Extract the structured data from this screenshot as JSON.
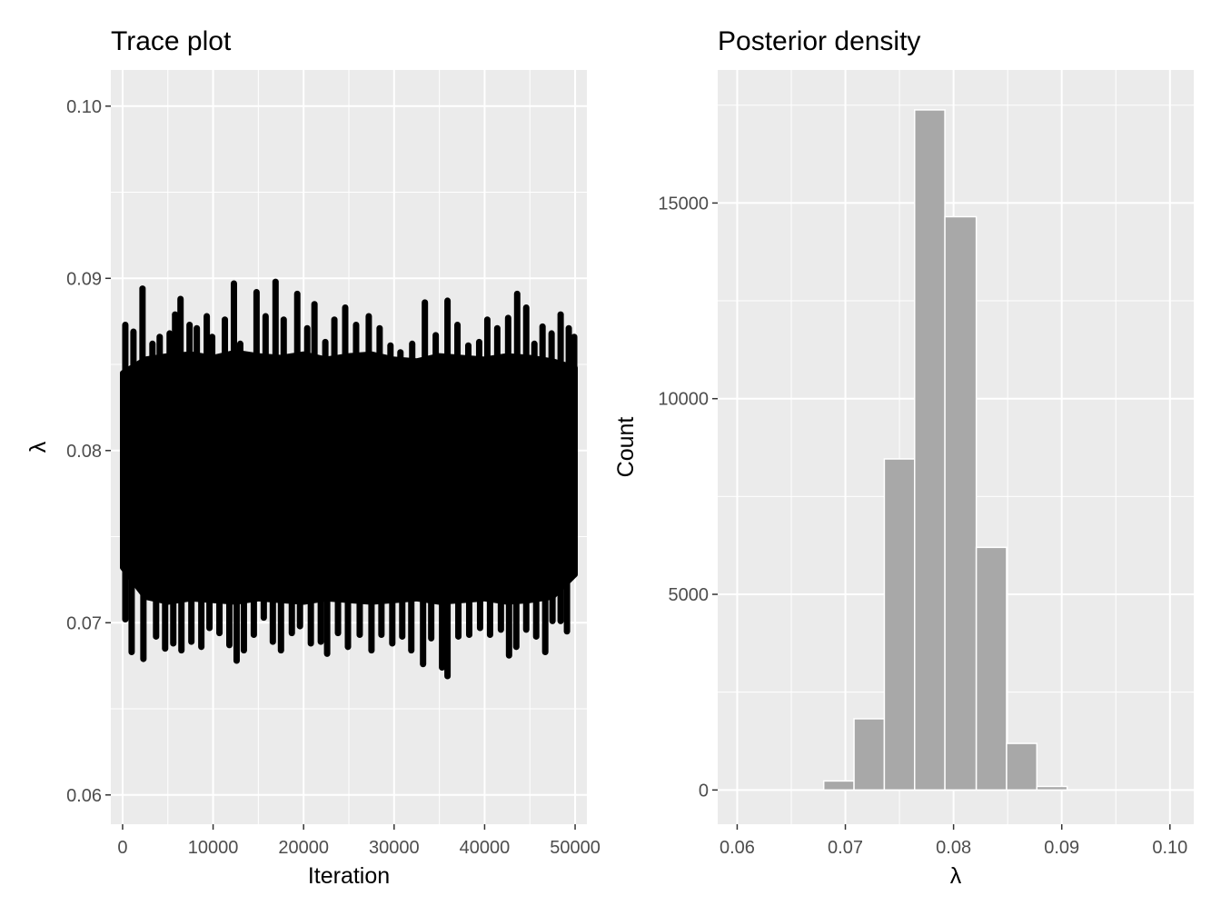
{
  "chart_data": [
    {
      "type": "line",
      "title": "Trace plot",
      "xlabel": "Iteration",
      "ylabel": "λ",
      "xlim": [
        -1300,
        51300
      ],
      "ylim": [
        0.0583,
        0.1021
      ],
      "x_ticks": [
        0,
        10000,
        20000,
        30000,
        40000,
        50000
      ],
      "x_tick_labels": [
        "0",
        "10000",
        "20000",
        "30000",
        "40000",
        "50000"
      ],
      "y_ticks": [
        0.06,
        0.07,
        0.08,
        0.09,
        0.1
      ],
      "y_tick_labels": [
        "0.06",
        "0.07",
        "0.08",
        "0.09",
        "0.10"
      ],
      "series": [
        {
          "color": "#000000",
          "band": {
            "x": [
              0,
              2500,
              5000,
              7500,
              10000,
              12500,
              15000,
              17500,
              20000,
              22500,
              25000,
              27500,
              30000,
              32500,
              35000,
              37500,
              40000,
              42500,
              45000,
              47500,
              50000
            ],
            "upper": [
              0.0845,
              0.0853,
              0.0855,
              0.0856,
              0.0854,
              0.0857,
              0.0855,
              0.0854,
              0.0856,
              0.0853,
              0.0855,
              0.0856,
              0.0853,
              0.0852,
              0.0855,
              0.0854,
              0.0853,
              0.0855,
              0.0854,
              0.0852,
              0.0848
            ],
            "lower": [
              0.0732,
              0.0715,
              0.0712,
              0.0714,
              0.0713,
              0.0712,
              0.0714,
              0.0713,
              0.0712,
              0.0714,
              0.0713,
              0.0712,
              0.0713,
              0.0714,
              0.0712,
              0.0713,
              0.0714,
              0.0712,
              0.0713,
              0.0715,
              0.0728
            ]
          },
          "spikes_high": [
            {
              "x": 300,
              "y": 0.0873
            },
            {
              "x": 1200,
              "y": 0.0869
            },
            {
              "x": 2200,
              "y": 0.0894
            },
            {
              "x": 3300,
              "y": 0.0862
            },
            {
              "x": 4100,
              "y": 0.0866
            },
            {
              "x": 5200,
              "y": 0.0868
            },
            {
              "x": 5800,
              "y": 0.0879
            },
            {
              "x": 6400,
              "y": 0.0888
            },
            {
              "x": 7400,
              "y": 0.0873
            },
            {
              "x": 8200,
              "y": 0.0871
            },
            {
              "x": 9300,
              "y": 0.0878
            },
            {
              "x": 9900,
              "y": 0.0866
            },
            {
              "x": 11300,
              "y": 0.0876
            },
            {
              "x": 12300,
              "y": 0.0897
            },
            {
              "x": 13000,
              "y": 0.0862
            },
            {
              "x": 14800,
              "y": 0.0892
            },
            {
              "x": 15800,
              "y": 0.0878
            },
            {
              "x": 16900,
              "y": 0.0898
            },
            {
              "x": 17800,
              "y": 0.0876
            },
            {
              "x": 19300,
              "y": 0.0891
            },
            {
              "x": 20400,
              "y": 0.0871
            },
            {
              "x": 21200,
              "y": 0.0885
            },
            {
              "x": 22400,
              "y": 0.0863
            },
            {
              "x": 23400,
              "y": 0.0876
            },
            {
              "x": 24600,
              "y": 0.0883
            },
            {
              "x": 25800,
              "y": 0.0873
            },
            {
              "x": 27200,
              "y": 0.0878
            },
            {
              "x": 28400,
              "y": 0.0871
            },
            {
              "x": 29600,
              "y": 0.0861
            },
            {
              "x": 30700,
              "y": 0.0857
            },
            {
              "x": 32000,
              "y": 0.0862
            },
            {
              "x": 33400,
              "y": 0.0886
            },
            {
              "x": 34600,
              "y": 0.0867
            },
            {
              "x": 35900,
              "y": 0.0887
            },
            {
              "x": 37000,
              "y": 0.0873
            },
            {
              "x": 38200,
              "y": 0.0861
            },
            {
              "x": 39400,
              "y": 0.0863
            },
            {
              "x": 40300,
              "y": 0.0876
            },
            {
              "x": 41400,
              "y": 0.0871
            },
            {
              "x": 42600,
              "y": 0.0877
            },
            {
              "x": 43600,
              "y": 0.0891
            },
            {
              "x": 44600,
              "y": 0.0883
            },
            {
              "x": 45500,
              "y": 0.0862
            },
            {
              "x": 46400,
              "y": 0.0872
            },
            {
              "x": 47400,
              "y": 0.0868
            },
            {
              "x": 48400,
              "y": 0.0879
            },
            {
              "x": 49300,
              "y": 0.0871
            },
            {
              "x": 49900,
              "y": 0.0866
            }
          ],
          "spikes_low": [
            {
              "x": 300,
              "y": 0.0702
            },
            {
              "x": 1000,
              "y": 0.0683
            },
            {
              "x": 2300,
              "y": 0.0679
            },
            {
              "x": 3700,
              "y": 0.0692
            },
            {
              "x": 4700,
              "y": 0.0685
            },
            {
              "x": 5600,
              "y": 0.0688
            },
            {
              "x": 6500,
              "y": 0.0684
            },
            {
              "x": 7600,
              "y": 0.0689
            },
            {
              "x": 8700,
              "y": 0.0686
            },
            {
              "x": 9600,
              "y": 0.0697
            },
            {
              "x": 10700,
              "y": 0.0694
            },
            {
              "x": 11800,
              "y": 0.0687
            },
            {
              "x": 12600,
              "y": 0.0678
            },
            {
              "x": 13400,
              "y": 0.0684
            },
            {
              "x": 14500,
              "y": 0.0693
            },
            {
              "x": 15600,
              "y": 0.0703
            },
            {
              "x": 16600,
              "y": 0.0689
            },
            {
              "x": 17500,
              "y": 0.0684
            },
            {
              "x": 18700,
              "y": 0.0694
            },
            {
              "x": 19600,
              "y": 0.0698
            },
            {
              "x": 20800,
              "y": 0.0688
            },
            {
              "x": 21900,
              "y": 0.0689
            },
            {
              "x": 22600,
              "y": 0.0682
            },
            {
              "x": 23800,
              "y": 0.0694
            },
            {
              "x": 24900,
              "y": 0.0686
            },
            {
              "x": 26200,
              "y": 0.0693
            },
            {
              "x": 27500,
              "y": 0.0684
            },
            {
              "x": 28600,
              "y": 0.0693
            },
            {
              "x": 29800,
              "y": 0.0688
            },
            {
              "x": 30900,
              "y": 0.0692
            },
            {
              "x": 31900,
              "y": 0.0684
            },
            {
              "x": 33200,
              "y": 0.0676
            },
            {
              "x": 34100,
              "y": 0.0691
            },
            {
              "x": 35300,
              "y": 0.0674
            },
            {
              "x": 35900,
              "y": 0.0669
            },
            {
              "x": 37100,
              "y": 0.0692
            },
            {
              "x": 38300,
              "y": 0.0693
            },
            {
              "x": 39500,
              "y": 0.0697
            },
            {
              "x": 40600,
              "y": 0.0693
            },
            {
              "x": 41800,
              "y": 0.0696
            },
            {
              "x": 42700,
              "y": 0.0681
            },
            {
              "x": 43500,
              "y": 0.0686
            },
            {
              "x": 44600,
              "y": 0.0696
            },
            {
              "x": 45700,
              "y": 0.0692
            },
            {
              "x": 46700,
              "y": 0.0683
            },
            {
              "x": 47500,
              "y": 0.0701
            },
            {
              "x": 48400,
              "y": 0.0701
            },
            {
              "x": 49100,
              "y": 0.0695
            }
          ]
        }
      ]
    },
    {
      "type": "bar",
      "title": "Posterior density",
      "xlabel": "λ",
      "ylabel": "Count",
      "xlim": [
        0.0582,
        0.1022
      ],
      "ylim": [
        -875,
        18400
      ],
      "x_ticks": [
        0.06,
        0.07,
        0.08,
        0.09,
        0.1
      ],
      "x_tick_labels": [
        "0.06",
        "0.07",
        "0.08",
        "0.09",
        "0.10"
      ],
      "y_ticks": [
        0,
        5000,
        10000,
        15000
      ],
      "y_tick_labels": [
        "0",
        "5000",
        "10000",
        "15000"
      ],
      "grid": true,
      "bar_color": "#a8a8a8",
      "bar_edge": "#ffffff",
      "bins": [
        {
          "x0": 0.0595,
          "x1": 0.0623,
          "count": 0
        },
        {
          "x0": 0.0623,
          "x1": 0.0652,
          "count": 0
        },
        {
          "x0": 0.0652,
          "x1": 0.068,
          "count": 0
        },
        {
          "x0": 0.068,
          "x1": 0.0708,
          "count": 230
        },
        {
          "x0": 0.0708,
          "x1": 0.0736,
          "count": 1820
        },
        {
          "x0": 0.0736,
          "x1": 0.0764,
          "count": 8460
        },
        {
          "x0": 0.0764,
          "x1": 0.0792,
          "count": 17380
        },
        {
          "x0": 0.0792,
          "x1": 0.0821,
          "count": 14650
        },
        {
          "x0": 0.0821,
          "x1": 0.0849,
          "count": 6200
        },
        {
          "x0": 0.0849,
          "x1": 0.0877,
          "count": 1190
        },
        {
          "x0": 0.0877,
          "x1": 0.0905,
          "count": 90
        },
        {
          "x0": 0.0905,
          "x1": 0.0933,
          "count": 0
        },
        {
          "x0": 0.0933,
          "x1": 0.0961,
          "count": 0
        },
        {
          "x0": 0.0961,
          "x1": 0.099,
          "count": 0
        },
        {
          "x0": 0.099,
          "x1": 0.1018,
          "count": 0
        }
      ]
    }
  ]
}
